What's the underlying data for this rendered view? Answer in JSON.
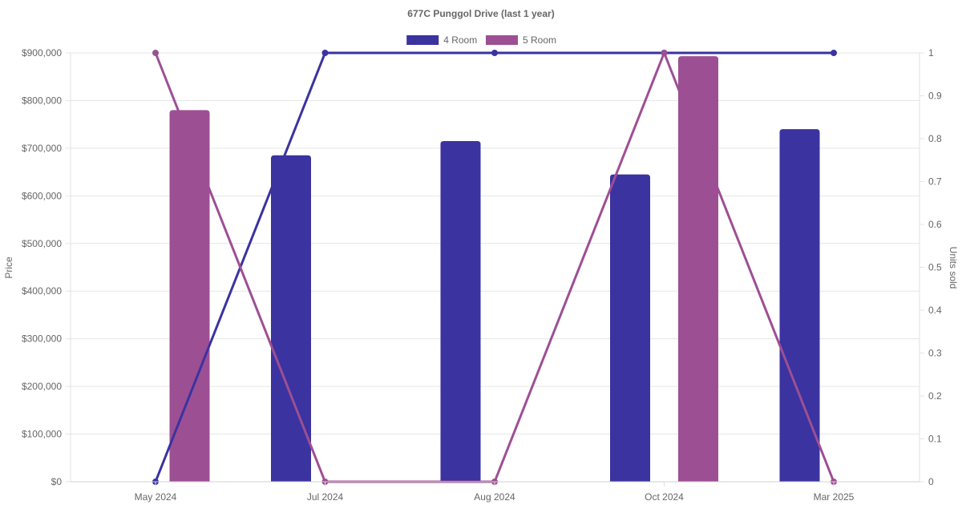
{
  "chart_data": {
    "type": "bar",
    "title": "677C Punggol Drive (last 1 year)",
    "categories": [
      "May 2024",
      "Jul 2024",
      "Aug 2024",
      "Oct 2024",
      "Mar 2025"
    ],
    "ylabel": "Price",
    "y2label": "Units sold",
    "ylim": [
      0,
      900000
    ],
    "y2lim": [
      0,
      1
    ],
    "yticks": [
      "$0",
      "$100,000",
      "$200,000",
      "$300,000",
      "$400,000",
      "$500,000",
      "$600,000",
      "$700,000",
      "$800,000",
      "$900,000"
    ],
    "y2ticks": [
      "0",
      "0.1",
      "0.2",
      "0.3",
      "0.4",
      "0.5",
      "0.6",
      "0.7",
      "0.8",
      "0.9",
      "1"
    ],
    "grid": true,
    "legend_position": "top-center",
    "series": [
      {
        "name": "4 Room",
        "color": "#3a33a0",
        "price_values": [
          null,
          685000,
          715000,
          645000,
          740000
        ],
        "units_sold": [
          0,
          1,
          1,
          1,
          1
        ]
      },
      {
        "name": "5 Room",
        "color": "#9d4f94",
        "price_values": [
          780000,
          null,
          null,
          893000,
          null
        ],
        "units_sold": [
          1,
          0,
          0,
          1,
          0
        ]
      }
    ]
  }
}
